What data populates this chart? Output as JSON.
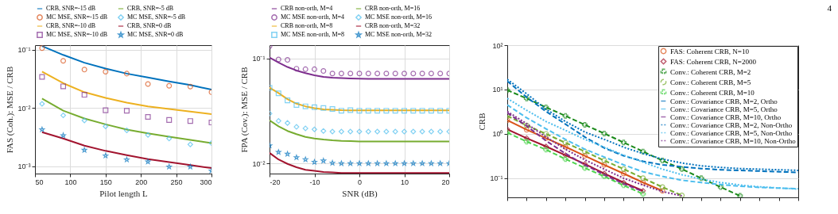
{
  "chart_data": [
    {
      "type": "line",
      "ylabel": "FAS (Coh.): MSE / CRB",
      "xlabel": "Pilot length L",
      "log": "y",
      "grid": true,
      "legend": "top",
      "x": [
        60,
        90,
        120,
        150,
        180,
        210,
        240,
        270,
        300
      ],
      "xlim": [
        50,
        300
      ],
      "xticks": [
        50,
        100,
        150,
        200,
        250,
        300
      ],
      "ylim": [
        0.00075,
        0.12
      ],
      "yticks": [
        {
          "value": 0.001,
          "label": "10⁻³"
        },
        {
          "value": 0.01,
          "label": "10⁻²"
        },
        {
          "value": 0.1,
          "label": "10⁻¹"
        }
      ],
      "series": [
        {
          "name": "CRB, SNR=-15 dB",
          "type": "line",
          "color": "#0072bd",
          "values": [
            0.116,
            0.0816,
            0.06,
            0.0476,
            0.039,
            0.0334,
            0.0286,
            0.0248,
            0.0207
          ]
        },
        {
          "name": "CRB, SNR=-5 dB",
          "type": "line",
          "color": "#77ac30",
          "values": [
            0.0145,
            0.009,
            0.00663,
            0.00525,
            0.00428,
            0.00367,
            0.00322,
            0.00285,
            0.0025
          ]
        },
        {
          "name": "MC MSE, SNR=-15 dB",
          "type": "scatter",
          "marker": "circle",
          "color": "#d95319",
          "values": [
            0.107,
            0.0646,
            0.0457,
            0.042,
            0.039,
            0.0259,
            0.0241,
            0.0234,
            0.0187
          ]
        },
        {
          "name": "MC MSE, SNR=-5 dB",
          "type": "scatter",
          "marker": "diamond",
          "color": "#4dbeee",
          "values": [
            0.0118,
            0.00748,
            0.00611,
            0.00483,
            0.00415,
            0.00346,
            0.003,
            0.00237,
            0.0025
          ]
        },
        {
          "name": "CRB, SNR=-10 dB",
          "type": "line",
          "color": "#edb120",
          "values": [
            0.0422,
            0.0267,
            0.0187,
            0.0149,
            0.0124,
            0.0107,
            0.00966,
            0.0087,
            0.00787
          ]
        },
        {
          "name": "CRB, SNR=0 dB",
          "type": "line",
          "color": "#a2142f",
          "values": [
            0.00386,
            0.003,
            0.00226,
            0.00184,
            0.00155,
            0.00133,
            0.00118,
            0.00105,
            0.00093
          ]
        },
        {
          "name": "MC MSE, SNR=-10 dB",
          "type": "scatter",
          "marker": "square",
          "color": "#7e2f8e",
          "values": [
            0.0343,
            0.0236,
            0.0169,
            0.00916,
            0.00899,
            0.00705,
            0.00624,
            0.00599,
            0.00564
          ]
        },
        {
          "name": "MC MSE, SNR=0 dB",
          "type": "scatter",
          "marker": "star",
          "color": "#0072bd",
          "values": [
            0.00428,
            0.00339,
            0.0019,
            0.00152,
            0.0013,
            0.0012,
            0.00098,
            0.00098,
            0.00084
          ]
        }
      ]
    },
    {
      "type": "line",
      "ylabel": "FPA (Cov.): MSE / CRB",
      "xlabel": "SNR (dB)",
      "log": "y",
      "grid": true,
      "legend": "top",
      "x": [
        -20,
        -18,
        -16,
        -14,
        -12,
        -10,
        -8,
        -6,
        -4,
        -2,
        0,
        2,
        4,
        6,
        8,
        10,
        12,
        14,
        16,
        18,
        20
      ],
      "xlim": [
        -20,
        20
      ],
      "xticks": [
        -20,
        -10,
        0,
        10,
        20
      ],
      "ylim": [
        0.008,
        0.134
      ],
      "yticks": [
        {
          "value": 0.01,
          "label": "10⁻²"
        },
        {
          "value": 0.1,
          "label": "10⁻¹"
        }
      ],
      "series": [
        {
          "name": "CRB non-orth, M=4",
          "type": "line",
          "color": "#7e2f8e",
          "values": [
            0.102,
            0.0916,
            0.083,
            0.0769,
            0.0726,
            0.0693,
            0.0669,
            0.0657,
            0.065,
            0.0645,
            0.0642,
            0.064,
            0.064,
            0.064,
            0.064,
            0.064,
            0.064,
            0.064,
            0.064,
            0.064,
            0.064
          ]
        },
        {
          "name": "CRB non-orth, M=16",
          "type": "line",
          "color": "#77ac30",
          "values": [
            0.0257,
            0.0226,
            0.0204,
            0.019,
            0.0179,
            0.0173,
            0.0169,
            0.0166,
            0.0164,
            0.0163,
            0.0162,
            0.0162,
            0.0162,
            0.0162,
            0.0162,
            0.0162,
            0.0162,
            0.0162,
            0.0162,
            0.0162,
            0.0162
          ]
        },
        {
          "name": "MC MSE non-orth, M=4",
          "type": "scatter",
          "marker": "circle",
          "color": "#7e2f8e",
          "values": [
            0.131,
            0.098,
            0.097,
            0.08,
            0.079,
            0.079,
            0.076,
            0.072,
            0.072,
            0.072,
            0.072,
            0.072,
            0.072,
            0.072,
            0.072,
            0.072,
            0.072,
            0.072,
            0.072,
            0.072,
            0.072
          ]
        },
        {
          "name": "MC MSE non-orth, M=16",
          "type": "scatter",
          "marker": "diamond",
          "color": "#4dbeee",
          "values": [
            0.0299,
            0.0254,
            0.0243,
            0.0223,
            0.0216,
            0.0211,
            0.0204,
            0.0201,
            0.0201,
            0.0201,
            0.0201,
            0.0201,
            0.0201,
            0.0201,
            0.0201,
            0.0201,
            0.0201,
            0.0201,
            0.0201,
            0.0201,
            0.0201
          ]
        },
        {
          "name": "CRB non-orth, M=8",
          "type": "line",
          "color": "#edb120",
          "values": [
            0.0527,
            0.0469,
            0.041,
            0.0371,
            0.035,
            0.0336,
            0.0328,
            0.0325,
            0.0322,
            0.0321,
            0.0321,
            0.0321,
            0.0321,
            0.0321,
            0.0321,
            0.0321,
            0.0321,
            0.0321,
            0.0321,
            0.0321,
            0.0321
          ]
        },
        {
          "name": "CRB non-orth, M=32",
          "type": "line",
          "color": "#a2142f",
          "values": [
            0.0126,
            0.0109,
            0.0099,
            0.0092,
            0.0087,
            0.0085,
            0.0083,
            0.0082,
            0.0081,
            0.0081,
            0.0081,
            0.0081,
            0.0081,
            0.0081,
            0.0081,
            0.0081,
            0.0081,
            0.0081,
            0.0081,
            0.0081,
            0.0081
          ]
        },
        {
          "name": "MC MSE non-orth, M=8",
          "type": "scatter",
          "marker": "square",
          "color": "#4dbeee",
          "values": [
            0.0527,
            0.0466,
            0.0399,
            0.036,
            0.035,
            0.0343,
            0.0337,
            0.033,
            0.0318,
            0.0322,
            0.0318,
            0.0318,
            0.0318,
            0.0318,
            0.0318,
            0.0318,
            0.0318,
            0.0318,
            0.0318,
            0.0318,
            0.0318
          ]
        },
        {
          "name": "MC MSE non-orth, M=32",
          "type": "scatter",
          "marker": "star",
          "color": "#0072bd",
          "values": [
            0.0148,
            0.0128,
            0.0123,
            0.0114,
            0.0109,
            0.0103,
            0.0106,
            0.0101,
            0.01,
            0.01,
            0.01,
            0.01,
            0.01,
            0.01,
            0.01,
            0.01,
            0.01,
            0.01,
            0.01,
            0.01,
            0.01
          ]
        }
      ]
    },
    {
      "type": "line",
      "ylabel": "CRB",
      "log": "y",
      "grid": "y",
      "legend": "top right",
      "tick_labels": "y",
      "annotations": [
        "4"
      ],
      "categories": [
        null,
        null,
        null,
        null,
        null,
        null,
        null,
        null,
        null,
        null,
        null,
        null,
        null,
        null,
        null,
        null
      ],
      "ylim": [
        0.037,
        100
      ],
      "yticks": [
        {
          "value": 0.1,
          "label": "10⁻¹"
        },
        {
          "value": 1,
          "label": "10⁰"
        },
        {
          "value": 10,
          "label": "10¹"
        },
        {
          "value": 100,
          "label": "10²"
        }
      ],
      "series": [
        {
          "name": "FAS: Coherent CRB, N=10",
          "type": "line",
          "marker": "circle",
          "line_style": "solid",
          "color": "#d95319",
          "values": [
            2.03,
            1.24,
            0.8,
            0.51,
            0.32,
            0.2,
            0.127,
            0.08,
            0.052,
            null,
            null,
            null,
            null,
            null,
            null,
            null
          ]
        },
        {
          "name": "FAS: Coherent CRB, N=2000",
          "type": "line",
          "marker": "diamond",
          "line_style": "solid",
          "color": "#a2142f",
          "values": [
            1.27,
            0.8,
            0.52,
            0.33,
            0.21,
            0.128,
            0.08,
            0.052,
            null,
            null,
            null,
            null,
            null,
            null,
            null,
            null
          ]
        },
        {
          "name": "Conv.: Coherent CRB, M=2",
          "type": "line",
          "marker": "cross",
          "line_style": "dashed",
          "color": "#1b8a1b",
          "values": [
            9.7,
            6.3,
            3.97,
            2.55,
            1.6,
            1.02,
            0.64,
            0.4,
            0.25,
            0.161,
            0.1,
            0.063,
            0.04,
            null,
            null,
            null
          ]
        },
        {
          "name": "Conv.: Coherent CRB, M=5",
          "type": "line",
          "marker": "circle",
          "line_style": "dashed",
          "color": "#77ac30",
          "values": [
            2.55,
            1.55,
            1.0,
            0.63,
            0.4,
            0.25,
            0.161,
            0.1,
            0.063,
            0.041,
            null,
            null,
            null,
            null,
            null,
            null
          ]
        },
        {
          "name": "Conv.: Coherent CRB, M=10",
          "type": "line",
          "marker": "cross",
          "line_style": "dashed",
          "color": "#4dd34d",
          "values": [
            1.07,
            0.67,
            0.44,
            0.27,
            0.17,
            0.11,
            0.069,
            0.044,
            null,
            null,
            null,
            null,
            null,
            null,
            null,
            null
          ]
        },
        {
          "name": "Conv.: Covariance CRB, M=2, Ortho",
          "type": "line",
          "line_style": "dashed",
          "color": "#0072bd",
          "values": [
            15.5,
            6.7,
            3.2,
            1.66,
            0.85,
            0.48,
            0.32,
            0.24,
            0.2,
            0.18,
            0.165,
            0.155,
            0.15,
            0.145,
            0.14,
            0.135
          ]
        },
        {
          "name": "Conv.: Covariance CRB, M=5, Ortho",
          "type": "line",
          "line_style": "dashed",
          "color": "#4dbeee",
          "values": [
            4.5,
            2.3,
            1.3,
            0.75,
            0.45,
            0.3,
            0.2,
            0.14,
            0.11,
            0.09,
            0.08,
            0.072,
            0.066,
            0.062,
            0.06,
            0.058
          ]
        },
        {
          "name": "Conv.: Covariance CRB, M=10, Ortho",
          "type": "line",
          "line_style": "dashed",
          "color": "#7e2f8e",
          "values": [
            3.0,
            1.5,
            0.7,
            0.36,
            0.2,
            0.12,
            0.075,
            0.05,
            null,
            null,
            null,
            null,
            null,
            null,
            null,
            null
          ]
        },
        {
          "name": "Conv.: Covariance CRB, M=2, Non-Ortho",
          "type": "line",
          "line_style": "dotted",
          "color": "#0072bd",
          "values": [
            17,
            8,
            3.6,
            1.9,
            1.1,
            0.75,
            0.5,
            0.36,
            0.27,
            0.22,
            0.19,
            0.175,
            0.165,
            0.16,
            0.155,
            0.15
          ]
        },
        {
          "name": "Conv.: Covariance CRB, M=5, Non-Ortho",
          "type": "line",
          "line_style": "dotted",
          "color": "#4dbeee",
          "values": [
            6.3,
            3.4,
            1.9,
            1.2,
            0.75,
            0.5,
            0.33,
            0.23,
            0.16,
            0.12,
            0.095,
            0.08,
            0.07,
            0.064,
            0.06,
            0.057
          ]
        },
        {
          "name": "Conv.: Covariance CRB, M=10, Non-Ortho",
          "type": "line",
          "line_style": "dotted",
          "color": "#7e2f8e",
          "values": [
            3.2,
            1.7,
            0.85,
            0.45,
            0.26,
            0.16,
            0.1,
            0.07,
            0.05,
            0.04,
            null,
            null,
            null,
            null,
            null,
            null
          ]
        }
      ]
    }
  ]
}
